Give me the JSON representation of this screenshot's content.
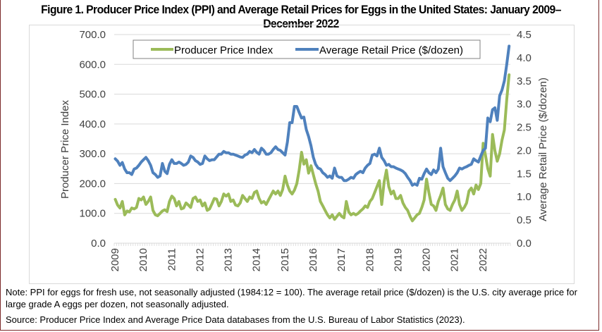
{
  "figure": {
    "title": "Figure 1. Producer Price Index (PPI) and Average Retail Prices for Eggs in the United States: January 2009–December 2022",
    "note": "Note: PPI for eggs for fresh use, not seasonally adjusted (1984:12 = 100). The average retail price ($/dozen) is the U.S. city average price for large grade A eggs per dozen, not seasonally adjusted.",
    "source": "Source: Producer Price Index and Average Price Data databases from the U.S. Bureau of Labor Statistics (2023)."
  },
  "chart_data": {
    "type": "line",
    "title": "Figure 1. Producer Price Index (PPI) and Average Retail Prices for Eggs in the United States: January 2009–December 2022",
    "xlabel": "",
    "ylabel": "Producer Price Index",
    "y2label": "Average Retail Price ($/dozen)",
    "ylim": [
      0,
      700
    ],
    "y2lim": [
      0,
      4.5
    ],
    "yticks": [
      "0.0",
      "100.0",
      "200.0",
      "300.0",
      "400.0",
      "500.0",
      "600.0",
      "700.0"
    ],
    "y2ticks": [
      "0.0",
      "0.5",
      "1.0",
      "1.5",
      "2.0",
      "2.5",
      "3.0",
      "3.5",
      "4.0",
      "4.5"
    ],
    "xticks": [
      "2009",
      "2010",
      "2011",
      "2012",
      "2013",
      "2014",
      "2015",
      "2016",
      "2017",
      "2018",
      "2019",
      "2020",
      "2021",
      "2022"
    ],
    "x_start": "2009-01",
    "x_end": "2022-12",
    "frequency": "monthly",
    "grid": true,
    "legend": "top",
    "series": [
      {
        "name": "Producer Price Index",
        "axis": "left",
        "color": "#9bbb59",
        "values": [
          147,
          128,
          118,
          140,
          95,
          108,
          105,
          118,
          115,
          120,
          150,
          145,
          155,
          130,
          140,
          155,
          110,
          95,
          92,
          100,
          108,
          112,
          106,
          140,
          158,
          150,
          125,
          140,
          115,
          118,
          135,
          128,
          120,
          150,
          155,
          140,
          145,
          125,
          135,
          110,
          115,
          132,
          150,
          148,
          125,
          140,
          165,
          158,
          165,
          140,
          145,
          128,
          125,
          135,
          160,
          150,
          140,
          155,
          150,
          170,
          175,
          150,
          135,
          140,
          130,
          145,
          160,
          175,
          165,
          175,
          160,
          180,
          225,
          195,
          175,
          165,
          178,
          200,
          245,
          305,
          265,
          280,
          235,
          260,
          230,
          200,
          175,
          140,
          125,
          110,
          95,
          85,
          95,
          80,
          90,
          100,
          90,
          85,
          140,
          105,
          95,
          100,
          95,
          100,
          108,
          115,
          125,
          120,
          140,
          150,
          170,
          190,
          210,
          130,
          205,
          245,
          190,
          165,
          175,
          150,
          150,
          160,
          135,
          120,
          110,
          90,
          75,
          85,
          95,
          100,
          120,
          145,
          215,
          170,
          130,
          125,
          110,
          140,
          160,
          185,
          130,
          115,
          110,
          130,
          145,
          175,
          130,
          110,
          120,
          135,
          175,
          185,
          165,
          195,
          180,
          200,
          335,
          295,
          250,
          225,
          365,
          310,
          275,
          300,
          345,
          380,
          480,
          565
        ]
      },
      {
        "name": "Average Retail Price ($/dozen)",
        "axis": "right",
        "color": "#4f81bd",
        "values": [
          1.82,
          1.77,
          1.68,
          1.74,
          1.6,
          1.52,
          1.52,
          1.48,
          1.6,
          1.62,
          1.68,
          1.75,
          1.8,
          1.85,
          1.78,
          1.68,
          1.52,
          1.48,
          1.42,
          1.45,
          1.72,
          1.55,
          1.5,
          1.7,
          1.8,
          1.72,
          1.72,
          1.75,
          1.72,
          1.68,
          1.7,
          1.75,
          1.88,
          1.85,
          1.78,
          1.75,
          1.7,
          1.72,
          1.88,
          1.82,
          1.78,
          1.8,
          1.8,
          1.86,
          1.92,
          1.92,
          1.98,
          1.95,
          1.95,
          1.92,
          1.92,
          1.9,
          1.88,
          1.86,
          1.85,
          1.9,
          1.92,
          1.98,
          1.95,
          2.02,
          1.96,
          1.92,
          2.05,
          2.0,
          1.92,
          1.92,
          1.95,
          2.02,
          2.08,
          2.02,
          2.0,
          1.95,
          1.9,
          2.18,
          2.6,
          2.6,
          2.95,
          2.95,
          2.82,
          2.7,
          2.72,
          2.45,
          2.3,
          2.1,
          1.85,
          1.7,
          1.62,
          1.6,
          1.52,
          1.48,
          1.42,
          1.45,
          1.4,
          1.62,
          1.45,
          1.42,
          1.42,
          1.35,
          1.35,
          1.38,
          1.42,
          1.4,
          1.48,
          1.52,
          1.55,
          1.52,
          1.62,
          1.68,
          1.72,
          1.9,
          1.92,
          1.88,
          2.05,
          1.85,
          1.78,
          1.68,
          1.7,
          1.65,
          1.65,
          1.62,
          1.6,
          1.58,
          1.55,
          1.5,
          1.42,
          1.35,
          1.25,
          1.28,
          1.25,
          1.4,
          1.38,
          1.5,
          1.6,
          1.52,
          1.48,
          1.58,
          1.52,
          1.6,
          2.05,
          1.65,
          1.52,
          1.4,
          1.35,
          1.4,
          1.45,
          1.52,
          1.62,
          1.6,
          1.63,
          1.65,
          1.68,
          1.7,
          1.82,
          1.78,
          1.75,
          1.88,
          2.0,
          2.05,
          2.7,
          2.62,
          2.88,
          2.92,
          2.65,
          3.18,
          3.3,
          3.5,
          3.85,
          4.25
        ]
      }
    ]
  }
}
